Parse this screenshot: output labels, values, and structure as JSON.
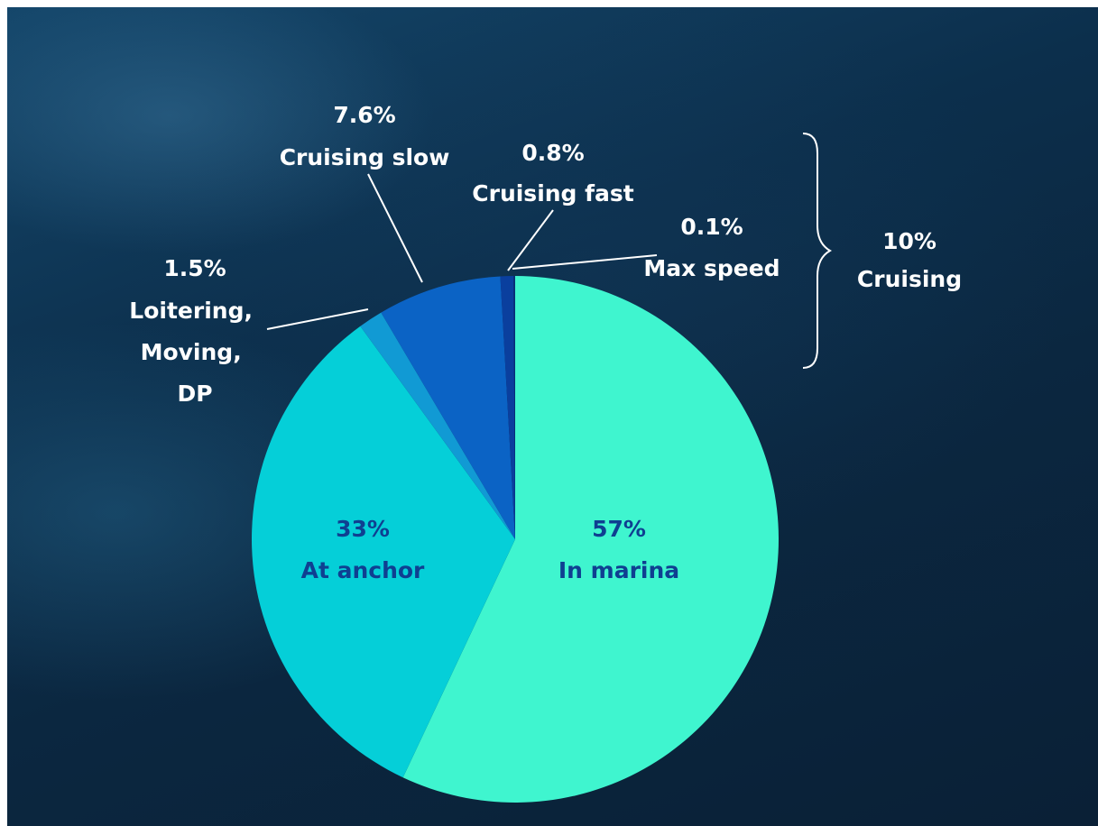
{
  "chart_data": {
    "type": "pie",
    "title": "",
    "slices": [
      {
        "label": "In marina",
        "percent_label": "57%",
        "value": 57,
        "color": "#3ff5cf"
      },
      {
        "label": "At anchor",
        "percent_label": "33%",
        "value": 33,
        "color": "#05cfd8"
      },
      {
        "label": "Loitering,\nMoving,\nDP",
        "percent_label": "1.5%",
        "value": 1.5,
        "color": "#119ad4"
      },
      {
        "label": "Cruising slow",
        "percent_label": "7.6%",
        "value": 7.6,
        "color": "#0b63c5"
      },
      {
        "label": "Cruising fast",
        "percent_label": "0.8%",
        "value": 0.8,
        "color": "#0a3f9e"
      },
      {
        "label": "Max speed",
        "percent_label": "0.1%",
        "value": 0.1,
        "color": "#082f78"
      }
    ],
    "group": {
      "label": "Cruising",
      "percent_label": "10%"
    }
  },
  "colors": {
    "background_dark": "#0b2740",
    "label_text": "#ffffff",
    "inner_label_text": "#0f3f91"
  }
}
